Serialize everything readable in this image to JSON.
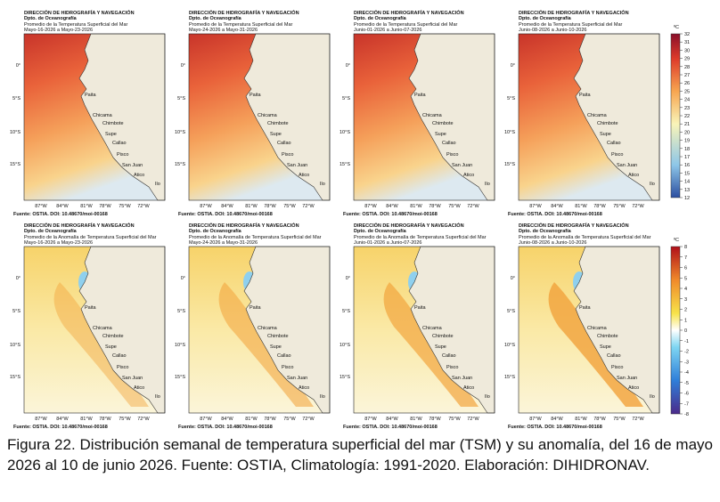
{
  "header": {
    "org": "DIRECCIÓN DE HIDROGRAFÍA Y NAVEGACIÓN",
    "dept": "Dpto. de Oceanografía"
  },
  "panels": [
    {
      "product": "Promedio de la Temperatura Superficial del Mar",
      "period": "Mayo-16-2026 a Mayo-23-2026"
    },
    {
      "product": "Promedio de la Temperatura Superficial del Mar",
      "period": "Mayo-24-2026 a Mayo-31-2026"
    },
    {
      "product": "Promedio de la Temperatura Superficial del Mar",
      "period": "Junio-01-2026 a Junio-07-2026"
    },
    {
      "product": "Promedio de la Temperatura Superficial del Mar",
      "period": "Junio-08-2026 a Junio-10-2026"
    },
    {
      "product": "Promedio de la Anomalía de Temperatura Superficial del Mar",
      "period": "Mayo-16-2026 a Mayo-23-2026"
    },
    {
      "product": "Promedio de la Anomalía de Temperatura Superficial del Mar",
      "period": "Mayo-24-2026 a Mayo-31-2026"
    },
    {
      "product": "Promedio de la Anomalía de Temperatura Superficial del Mar",
      "period": "Junio-01-2026 a Junio-07-2026"
    },
    {
      "product": "Promedio de la Anomalía de Temperatura Superficial del Mar",
      "period": "Junio-08-2026 a Junio-10-2026"
    }
  ],
  "lat_labels": [
    "0°",
    "5°S",
    "10°S",
    "15°S"
  ],
  "lon_labels": [
    "87°W",
    "84°W",
    "81°W",
    "78°W",
    "75°W",
    "72°W"
  ],
  "places": [
    "Paita",
    "Chicama",
    "Chimbote",
    "Supe",
    "Callao",
    "Pisco",
    "San Juan",
    "Atico",
    "Ilo"
  ],
  "source": "Fuente: OSTIA. DOI: 10.48670/moi-00168",
  "colorbars": [
    {
      "unit": "ºC",
      "ticks": [
        32,
        31,
        30,
        29,
        28,
        27,
        26,
        25,
        24,
        23,
        22,
        21,
        20,
        19,
        18,
        17,
        16,
        15,
        14,
        13,
        12
      ]
    },
    {
      "unit": "ºC",
      "ticks": [
        8,
        7,
        6,
        5,
        4,
        3,
        2,
        1,
        0,
        -1,
        -2,
        -3,
        -4,
        -5,
        -6,
        -7,
        -8
      ]
    }
  ],
  "caption": "Figura 22. Distribución semanal de temperatura superficial del mar (TSM) y su anomalía, del 16 de mayo 2026 al 10 de junio 2026. Fuente: OSTIA, Climatología: 1991-2020. Elaboración: DIHIDRONAV."
}
